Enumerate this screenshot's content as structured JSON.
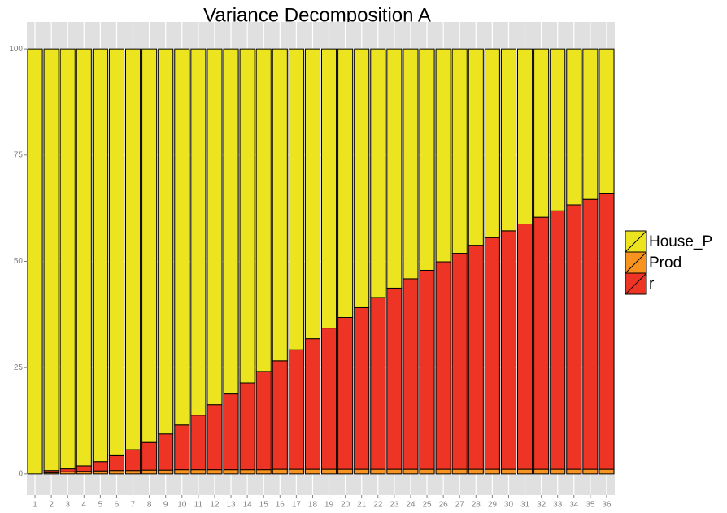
{
  "chart_data": {
    "type": "stacked_bar",
    "title": "Variance Decomposition A",
    "categories": [
      "1",
      "2",
      "3",
      "4",
      "5",
      "6",
      "7",
      "8",
      "9",
      "10",
      "11",
      "12",
      "13",
      "14",
      "15",
      "16",
      "17",
      "18",
      "19",
      "20",
      "21",
      "22",
      "23",
      "24",
      "25",
      "26",
      "27",
      "28",
      "29",
      "30",
      "31",
      "32",
      "33",
      "34",
      "35",
      "36"
    ],
    "series": [
      {
        "name": "House_P",
        "color": "#ece41f",
        "values": [
          100,
          99.2,
          98.8,
          98.1,
          97.1,
          95.7,
          94.3,
          92.6,
          90.6,
          88.5,
          86.2,
          83.7,
          81.2,
          78.6,
          75.9,
          73.4,
          70.8,
          68.2,
          65.7,
          63.2,
          60.9,
          58.5,
          56.3,
          54.1,
          52.1,
          50.1,
          48.1,
          46.2,
          44.4,
          42.8,
          41.2,
          39.6,
          38.1,
          36.7,
          35.4,
          34.1
        ]
      },
      {
        "name": "Prod",
        "color": "#f7931e",
        "values": [
          0,
          0.3,
          0.5,
          0.6,
          0.7,
          0.8,
          0.8,
          0.9,
          0.9,
          1,
          1,
          1,
          1,
          1,
          1,
          1.1,
          1.1,
          1.1,
          1.1,
          1.1,
          1.1,
          1.1,
          1.1,
          1.1,
          1.1,
          1.1,
          1.1,
          1.1,
          1.1,
          1.1,
          1.1,
          1.1,
          1.1,
          1.1,
          1.1,
          1.1
        ]
      },
      {
        "name": "r",
        "color": "#ee3424",
        "values": [
          0,
          0.5,
          0.7,
          1.3,
          2.2,
          3.5,
          4.9,
          6.5,
          8.5,
          10.5,
          12.8,
          15.3,
          17.8,
          20.4,
          23.1,
          25.5,
          28.1,
          30.7,
          33.2,
          35.7,
          38,
          40.4,
          42.6,
          44.8,
          46.8,
          48.8,
          50.8,
          52.7,
          54.5,
          56.1,
          57.7,
          59.3,
          60.8,
          62.2,
          63.5,
          64.8
        ]
      }
    ],
    "stack_order": [
      1,
      2,
      0
    ],
    "ylim": [
      -5,
      105
    ],
    "yticks": [
      0,
      25,
      50,
      75,
      100
    ],
    "grid": true
  }
}
